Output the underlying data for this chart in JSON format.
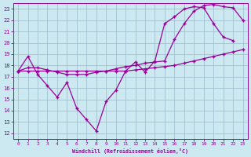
{
  "xlabel": "Windchill (Refroidissement éolien,°C)",
  "bg_color": "#cce8f0",
  "line_color": "#990099",
  "grid_color": "#99bbcc",
  "xlim": [
    -0.5,
    23.5
  ],
  "ylim": [
    11.5,
    23.5
  ],
  "xticks": [
    0,
    1,
    2,
    3,
    4,
    5,
    6,
    7,
    8,
    9,
    10,
    11,
    12,
    13,
    14,
    15,
    16,
    17,
    18,
    19,
    20,
    21,
    22,
    23
  ],
  "yticks": [
    12,
    13,
    14,
    15,
    16,
    17,
    18,
    19,
    20,
    21,
    22,
    23
  ],
  "line1_x": [
    0,
    1,
    2,
    3,
    4,
    5,
    6,
    7,
    8,
    9,
    10,
    11,
    12,
    13,
    14,
    15,
    16,
    17,
    18,
    19,
    20,
    21,
    22
  ],
  "line1_y": [
    17.5,
    18.8,
    17.2,
    16.2,
    15.2,
    16.5,
    14.2,
    13.2,
    12.2,
    14.8,
    15.8,
    17.5,
    18.3,
    17.4,
    18.4,
    21.7,
    22.3,
    23.0,
    23.2,
    23.1,
    21.7,
    20.5,
    20.2
  ],
  "line2_x": [
    0,
    1,
    2,
    3,
    4,
    5,
    6,
    7,
    8,
    9,
    10,
    11,
    12,
    13,
    14,
    15,
    16,
    17,
    18,
    19,
    20,
    21,
    22,
    23
  ],
  "line2_y": [
    17.5,
    17.8,
    17.8,
    17.6,
    17.4,
    17.2,
    17.2,
    17.2,
    17.4,
    17.5,
    17.7,
    17.9,
    18.0,
    18.2,
    18.3,
    18.4,
    20.3,
    21.7,
    22.8,
    23.3,
    23.4,
    23.2,
    23.1,
    22.0
  ],
  "line3_x": [
    0,
    1,
    2,
    3,
    4,
    5,
    6,
    7,
    8,
    9,
    10,
    11,
    12,
    13,
    14,
    15,
    16,
    17,
    18,
    19,
    20,
    21,
    22,
    23
  ],
  "line3_y": [
    17.5,
    17.5,
    17.5,
    17.5,
    17.5,
    17.5,
    17.5,
    17.5,
    17.5,
    17.5,
    17.5,
    17.5,
    17.6,
    17.7,
    17.8,
    17.9,
    18.0,
    18.2,
    18.4,
    18.6,
    18.8,
    19.0,
    19.2,
    19.4
  ]
}
